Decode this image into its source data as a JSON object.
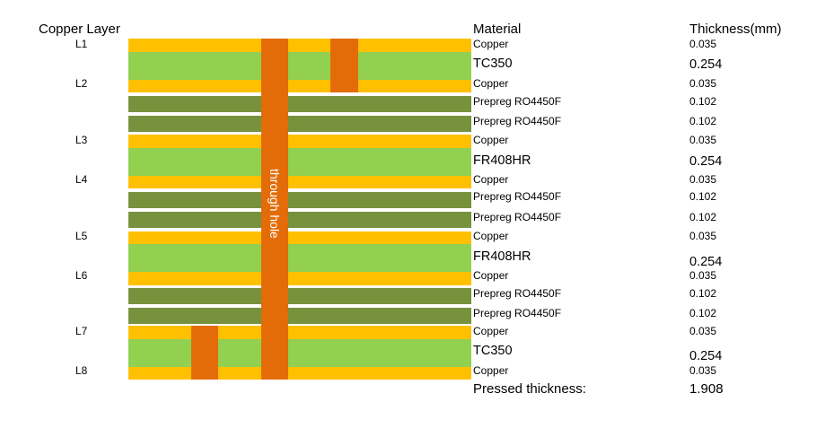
{
  "headers": {
    "copper_layer": "Copper Layer",
    "material": "Material",
    "thickness": "Thickness(mm)"
  },
  "colors": {
    "copper": "#ffc000",
    "core": "#92d050",
    "prepreg": "#76923c",
    "via": "#e36c09"
  },
  "layers": [
    {
      "type": "copper",
      "layer": "L1",
      "material": "Copper",
      "thickness": "0.035"
    },
    {
      "type": "core",
      "layer": "",
      "material": "TC350",
      "thickness": "0.254"
    },
    {
      "type": "copper",
      "layer": "L2",
      "material": "Copper",
      "thickness": "0.035"
    },
    {
      "type": "prepreg",
      "layer": "",
      "material": "Prepreg RO4450F",
      "thickness": "0.102"
    },
    {
      "type": "prepreg",
      "layer": "",
      "material": "Prepreg RO4450F",
      "thickness": "0.102"
    },
    {
      "type": "copper",
      "layer": "L3",
      "material": "Copper",
      "thickness": "0.035"
    },
    {
      "type": "core",
      "layer": "",
      "material": "FR408HR",
      "thickness": "0.254"
    },
    {
      "type": "copper",
      "layer": "L4",
      "material": "Copper",
      "thickness": "0.035"
    },
    {
      "type": "prepreg",
      "layer": "",
      "material": "Prepreg RO4450F",
      "thickness": "0.102"
    },
    {
      "type": "prepreg",
      "layer": "",
      "material": "Prepreg RO4450F",
      "thickness": "0.102"
    },
    {
      "type": "copper",
      "layer": "L5",
      "material": "Copper",
      "thickness": "0.035"
    },
    {
      "type": "core",
      "layer": "",
      "material": "FR408HR",
      "thickness": "0.254"
    },
    {
      "type": "copper",
      "layer": "L6",
      "material": "Copper",
      "thickness": "0.035"
    },
    {
      "type": "prepreg",
      "layer": "",
      "material": "Prepreg RO4450F",
      "thickness": "0.102"
    },
    {
      "type": "prepreg",
      "layer": "",
      "material": "Prepreg RO4450F",
      "thickness": "0.102"
    },
    {
      "type": "copper",
      "layer": "L7",
      "material": "Copper",
      "thickness": "0.035"
    },
    {
      "type": "core",
      "layer": "",
      "material": "TC350",
      "thickness": "0.254"
    },
    {
      "type": "copper",
      "layer": "L8",
      "material": "Copper",
      "thickness": "0.035"
    }
  ],
  "through_hole_label": "through hole",
  "total": {
    "label": "Pressed thickness:",
    "value": "1.908"
  }
}
